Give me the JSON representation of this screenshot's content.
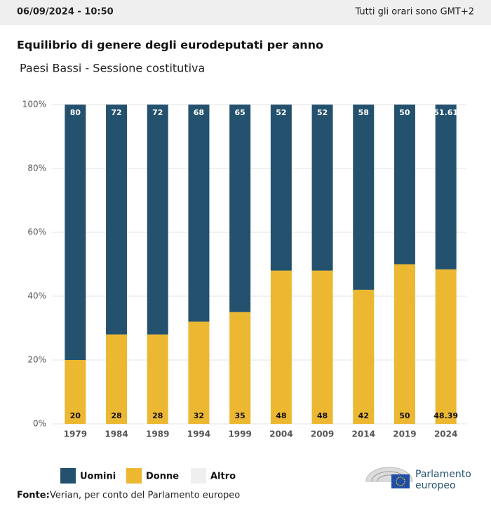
{
  "header": {
    "timestamp": "06/09/2024 - 10:50",
    "timezone": "Tutti gli orari sono GMT+2"
  },
  "chart_data": {
    "type": "stacked_bar",
    "title": "Equilibrio di genere degli eurodeputati per anno",
    "subtitle": "Paesi Bassi - Sessione costitutiva",
    "categories": [
      "1979",
      "1984",
      "1989",
      "1994",
      "1999",
      "2004",
      "2009",
      "2014",
      "2019",
      "2024"
    ],
    "series": [
      {
        "name": "Uomini",
        "color": "#24526e",
        "values": [
          80,
          72,
          72,
          68,
          65,
          52,
          52,
          58,
          50,
          51.61
        ]
      },
      {
        "name": "Donne",
        "color": "#ecb731",
        "values": [
          20,
          28,
          28,
          32,
          35,
          48,
          48,
          42,
          50,
          48.39
        ]
      },
      {
        "name": "Altro",
        "color": "#efefef",
        "values": [
          0,
          0,
          0,
          0,
          0,
          0,
          0,
          0,
          0,
          0
        ]
      }
    ],
    "ylim": [
      0,
      100
    ],
    "yticks": [
      {
        "value": 0,
        "label": "0%"
      },
      {
        "value": 20,
        "label": "20%"
      },
      {
        "value": 40,
        "label": "40%"
      },
      {
        "value": 60,
        "label": "60%"
      },
      {
        "value": 80,
        "label": "80%"
      },
      {
        "value": 100,
        "label": "100%"
      }
    ],
    "grid": true,
    "source_label": "Fonte:",
    "source": "Verian, per conto del Parlamento europeo"
  },
  "logo": {
    "line1": "Parlamento",
    "line2": "europeo"
  }
}
